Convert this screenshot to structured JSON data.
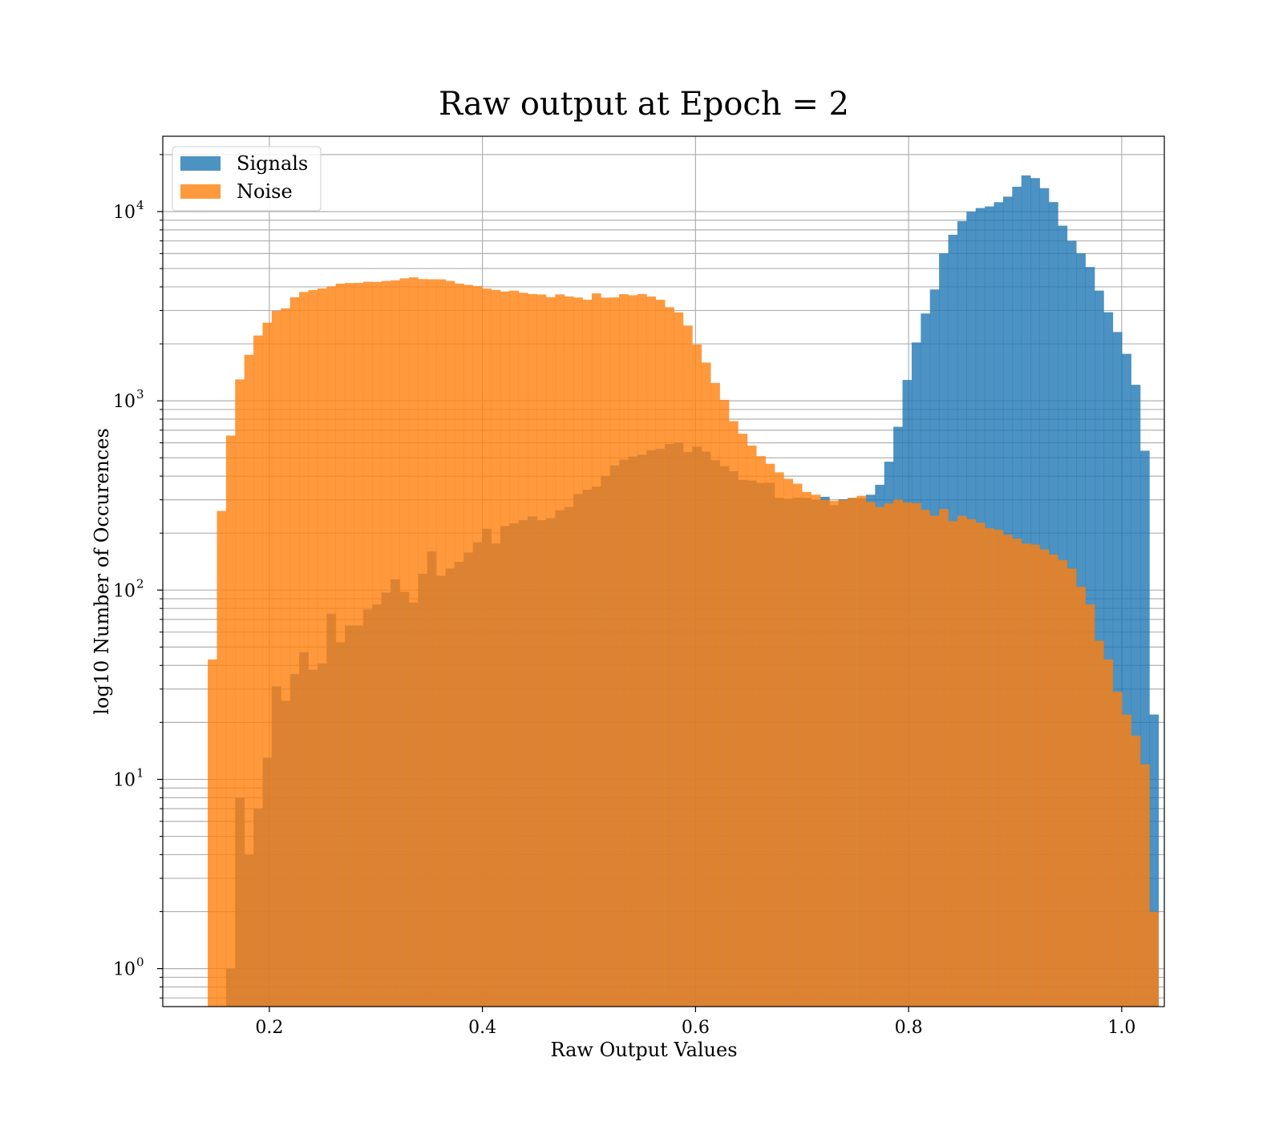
{
  "chart_data": {
    "type": "bar",
    "subtype": "histogram",
    "title": "Raw output at Epoch = 2",
    "xlabel": "Raw Output Values",
    "ylabel": "log10 Number of Occurences",
    "y_scale": "log",
    "xlim": [
      0.1,
      1.04
    ],
    "ylim": [
      0.63,
      25000
    ],
    "grid": true,
    "legend_position": "upper-left",
    "x_ticks": [
      0.2,
      0.4,
      0.6,
      0.8,
      1.0
    ],
    "x_tick_labels": [
      "0.2",
      "0.4",
      "0.6",
      "0.8",
      "1.0"
    ],
    "y_ticks": [
      1,
      10,
      100,
      1000,
      10000
    ],
    "y_tick_labels": [
      {
        "base": "10",
        "exp": "0"
      },
      {
        "base": "10",
        "exp": "1"
      },
      {
        "base": "10",
        "exp": "2"
      },
      {
        "base": "10",
        "exp": "3"
      },
      {
        "base": "10",
        "exp": "4"
      }
    ],
    "bin_start": 0.1422,
    "bin_width": 0.00858,
    "series": [
      {
        "name": "Signals",
        "color": "#1f77b4",
        "opacity": 0.8,
        "values": [
          0,
          0,
          1,
          8,
          4,
          7,
          13,
          31,
          26,
          36,
          47,
          38,
          41,
          75,
          53,
          65,
          65,
          79,
          84,
          97,
          114,
          98,
          86,
          122,
          160,
          119,
          130,
          141,
          158,
          179,
          211,
          176,
          218,
          225,
          234,
          245,
          234,
          240,
          264,
          275,
          322,
          339,
          352,
          400,
          455,
          489,
          508,
          519,
          549,
          558,
          591,
          603,
          536,
          573,
          539,
          486,
          452,
          425,
          382,
          379,
          368,
          369,
          307,
          304,
          308,
          307,
          299,
          311,
          281,
          302,
          307,
          306,
          319,
          360,
          477,
          729,
          1289,
          2033,
          2893,
          3875,
          6011,
          7541,
          8899,
          9978,
          10436,
          10642,
          11205,
          11987,
          13525,
          15528,
          15025,
          13299,
          11225,
          8424,
          7004,
          6015,
          5092,
          3823,
          2938,
          2310,
          1771,
          1215,
          545,
          22
        ]
      },
      {
        "name": "Noise",
        "color": "#ff7f0e",
        "opacity": 0.8,
        "values": [
          43,
          262,
          655,
          1298,
          1751,
          2214,
          2586,
          2988,
          3082,
          3524,
          3759,
          3846,
          3926,
          4024,
          4158,
          4193,
          4200,
          4257,
          4248,
          4298,
          4332,
          4436,
          4491,
          4398,
          4388,
          4385,
          4300,
          4163,
          4096,
          4038,
          3918,
          3853,
          3783,
          3819,
          3724,
          3667,
          3645,
          3529,
          3652,
          3561,
          3515,
          3419,
          3695,
          3510,
          3517,
          3659,
          3613,
          3666,
          3554,
          3418,
          3123,
          2933,
          2498,
          1983,
          1593,
          1243,
          1012,
          781,
          670,
          580,
          510,
          465,
          419,
          387,
          365,
          330,
          319,
          300,
          296,
          299,
          307,
          315,
          292,
          275,
          287,
          301,
          290,
          288,
          265,
          247,
          268,
          231,
          247,
          237,
          227,
          212,
          208,
          196,
          187,
          176,
          174,
          164,
          154,
          144,
          130,
          104,
          84,
          54,
          43,
          29,
          22,
          17,
          12,
          2
        ]
      }
    ]
  }
}
